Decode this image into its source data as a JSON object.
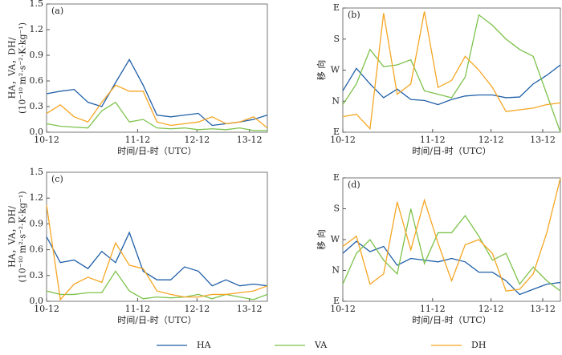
{
  "chart_data": [
    {
      "type": "line",
      "label": "(a)",
      "ylabel": [
        "HA，VA，DH/",
        "(10⁻¹⁰ m²·s⁻²·K·kg⁻¹)"
      ],
      "xlabel": "时间/日-时（UTC）",
      "x": [
        0,
        1,
        2,
        3,
        4,
        5,
        6,
        7,
        8,
        9,
        10,
        11,
        12,
        13,
        14,
        15,
        16
      ],
      "xlim": [
        0,
        16
      ],
      "xticks": [
        {
          "value": 0,
          "label": "10-12"
        },
        {
          "value": 6.6,
          "label": "11-12"
        },
        {
          "value": 10.9,
          "label": "12-12"
        },
        {
          "value": 14.7,
          "label": "13-12"
        }
      ],
      "ylim": [
        0,
        1.5
      ],
      "yticks": [
        {
          "value": 0,
          "label": "0.0"
        },
        0.3,
        0.6,
        0.9,
        1.2,
        1.5
      ],
      "series": [
        {
          "name": "HA",
          "color": "#1f5fa8",
          "values": [
            0.45,
            0.48,
            0.5,
            0.35,
            0.3,
            0.58,
            0.85,
            0.55,
            0.2,
            0.18,
            0.2,
            0.22,
            0.08,
            0.1,
            0.12,
            0.15,
            0.2
          ]
        },
        {
          "name": "VA",
          "color": "#7dc24b",
          "values": [
            0.1,
            0.07,
            0.06,
            0.05,
            0.25,
            0.35,
            0.12,
            0.15,
            0.05,
            0.04,
            0.05,
            0.03,
            0.04,
            0.03,
            0.05,
            0.02,
            0.02
          ]
        },
        {
          "name": "DH",
          "color": "#f5a623",
          "values": [
            0.22,
            0.32,
            0.18,
            0.12,
            0.35,
            0.55,
            0.48,
            0.48,
            0.12,
            0.08,
            0.1,
            0.12,
            0.18,
            0.1,
            0.12,
            0.18,
            0.05
          ]
        }
      ]
    },
    {
      "type": "line",
      "label": "(b)",
      "ylabel": [
        "移 向"
      ],
      "xlabel": "时间/日-时（UTC）",
      "x": [
        0,
        1,
        2,
        3,
        4,
        5,
        6,
        7,
        8,
        9,
        10,
        11,
        12,
        13,
        14,
        15,
        16
      ],
      "xlim": [
        0,
        16
      ],
      "xticks": [
        {
          "value": 0,
          "label": "10-12"
        },
        {
          "value": 6.6,
          "label": "11-12"
        },
        {
          "value": 10.9,
          "label": "12-12"
        },
        {
          "value": 14.7,
          "label": "13-12"
        }
      ],
      "ylim": [
        0,
        360
      ],
      "yticks": [
        {
          "value": 0,
          "label": "E"
        },
        {
          "value": 90,
          "label": "N"
        },
        {
          "value": 180,
          "label": "W"
        },
        {
          "value": 270,
          "label": "S"
        },
        {
          "value": 360,
          "label": "E"
        }
      ],
      "series": [
        {
          "name": "HA",
          "color": "#1f5fa8",
          "values": [
            120,
            185,
            140,
            100,
            125,
            95,
            92,
            80,
            95,
            105,
            108,
            108,
            100,
            102,
            140,
            165,
            195
          ]
        },
        {
          "name": "VA",
          "color": "#7dc24b",
          "values": [
            80,
            140,
            240,
            190,
            195,
            210,
            120,
            110,
            100,
            160,
            340,
            310,
            270,
            240,
            220,
            110,
            0
          ]
        },
        {
          "name": "DH",
          "color": "#f5a623",
          "values": [
            45,
            52,
            10,
            345,
            110,
            140,
            350,
            130,
            150,
            220,
            180,
            130,
            60,
            65,
            70,
            80,
            85
          ]
        }
      ]
    },
    {
      "type": "line",
      "label": "(c)",
      "ylabel": [
        "HA，VA，DH/",
        "(10⁻¹⁰ m²·s⁻²·K·kg⁻¹)"
      ],
      "xlabel": "时间/日-时（UTC）",
      "x": [
        0,
        1,
        2,
        3,
        4,
        5,
        6,
        7,
        8,
        9,
        10,
        11,
        12,
        13,
        14,
        15,
        16
      ],
      "xlim": [
        0,
        16
      ],
      "xticks": [
        {
          "value": 0,
          "label": "10-12"
        },
        {
          "value": 6.6,
          "label": "11-12"
        },
        {
          "value": 10.9,
          "label": "12-12"
        },
        {
          "value": 14.7,
          "label": "13-12"
        }
      ],
      "ylim": [
        0,
        1.5
      ],
      "yticks": [
        {
          "value": 0,
          "label": "0.0"
        },
        0.3,
        0.6,
        0.9,
        1.2,
        1.5
      ],
      "series": [
        {
          "name": "HA",
          "color": "#1f5fa8",
          "values": [
            0.75,
            0.45,
            0.48,
            0.38,
            0.58,
            0.45,
            0.8,
            0.35,
            0.25,
            0.25,
            0.4,
            0.35,
            0.18,
            0.25,
            0.18,
            0.2,
            0.18
          ]
        },
        {
          "name": "VA",
          "color": "#7dc24b",
          "values": [
            0.12,
            0.08,
            0.08,
            0.1,
            0.1,
            0.35,
            0.12,
            0.03,
            0.05,
            0.04,
            0.05,
            0.08,
            0.03,
            0.08,
            0.05,
            0.02,
            0.08
          ]
        },
        {
          "name": "DH",
          "color": "#f5a623",
          "values": [
            1.12,
            0.02,
            0.2,
            0.28,
            0.22,
            0.68,
            0.42,
            0.38,
            0.12,
            0.08,
            0.05,
            0.05,
            0.08,
            0.08,
            0.1,
            0.12,
            0.18
          ]
        }
      ]
    },
    {
      "type": "line",
      "label": "(d)",
      "ylabel": [
        "移 向"
      ],
      "xlabel": "时间/日-时（UTC）",
      "x": [
        0,
        1,
        2,
        3,
        4,
        5,
        6,
        7,
        8,
        9,
        10,
        11,
        12,
        13,
        14,
        15,
        16
      ],
      "xlim": [
        0,
        16
      ],
      "xticks": [
        {
          "value": 0,
          "label": "10-12"
        },
        {
          "value": 6.6,
          "label": "11-12"
        },
        {
          "value": 10.9,
          "label": "12-12"
        },
        {
          "value": 14.7,
          "label": "13-12"
        }
      ],
      "ylim": [
        0,
        360
      ],
      "yticks": [
        {
          "value": 0,
          "label": "E"
        },
        {
          "value": 90,
          "label": "N"
        },
        {
          "value": 180,
          "label": "W"
        },
        {
          "value": 270,
          "label": "S"
        },
        {
          "value": 360,
          "label": "E"
        }
      ],
      "series": [
        {
          "name": "HA",
          "color": "#1f5fa8",
          "values": [
            140,
            175,
            145,
            160,
            105,
            125,
            120,
            115,
            125,
            115,
            85,
            85,
            60,
            20,
            35,
            50,
            55
          ]
        },
        {
          "name": "VA",
          "color": "#7dc24b",
          "values": [
            50,
            140,
            180,
            120,
            80,
            270,
            110,
            200,
            200,
            250,
            190,
            120,
            140,
            50,
            100,
            60,
            30
          ]
        },
        {
          "name": "DH",
          "color": "#f5a623",
          "values": [
            160,
            190,
            50,
            80,
            290,
            150,
            295,
            170,
            60,
            165,
            180,
            140,
            30,
            35,
            80,
            200,
            360
          ]
        }
      ]
    }
  ]
}
